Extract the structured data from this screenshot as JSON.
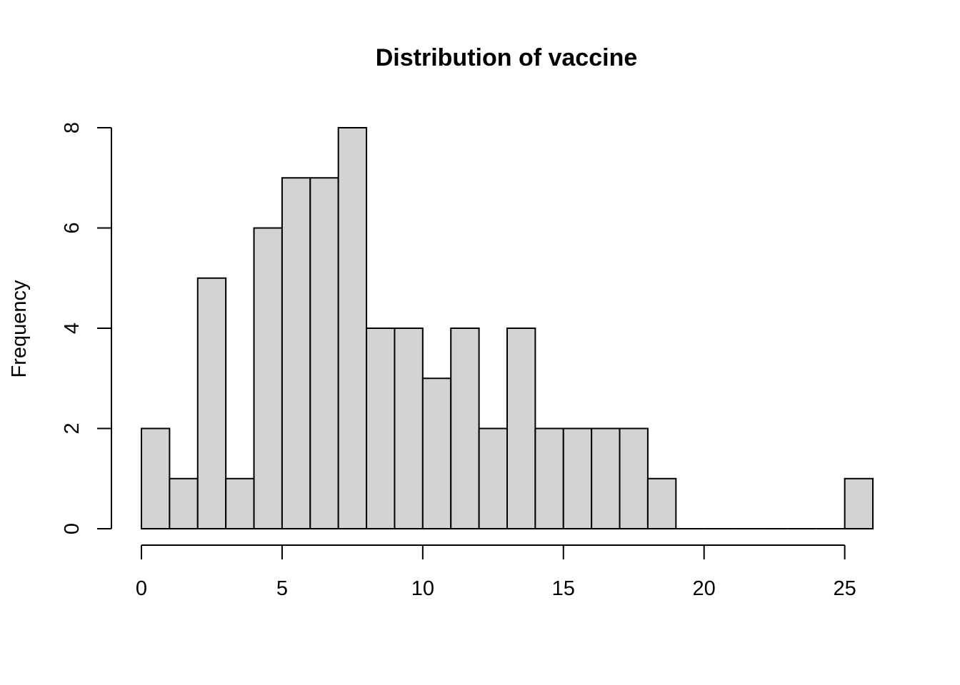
{
  "chart_data": {
    "type": "bar",
    "title": "Distribution of vaccine",
    "xlabel": "",
    "ylabel": "Frequency",
    "bins": [
      {
        "x0": 0,
        "x1": 1,
        "count": 2
      },
      {
        "x0": 1,
        "x1": 2,
        "count": 1
      },
      {
        "x0": 2,
        "x1": 3,
        "count": 5
      },
      {
        "x0": 3,
        "x1": 4,
        "count": 1
      },
      {
        "x0": 4,
        "x1": 5,
        "count": 6
      },
      {
        "x0": 5,
        "x1": 6,
        "count": 7
      },
      {
        "x0": 6,
        "x1": 7,
        "count": 7
      },
      {
        "x0": 7,
        "x1": 8,
        "count": 8
      },
      {
        "x0": 8,
        "x1": 9,
        "count": 4
      },
      {
        "x0": 9,
        "x1": 10,
        "count": 4
      },
      {
        "x0": 10,
        "x1": 11,
        "count": 3
      },
      {
        "x0": 11,
        "x1": 12,
        "count": 4
      },
      {
        "x0": 12,
        "x1": 13,
        "count": 2
      },
      {
        "x0": 13,
        "x1": 14,
        "count": 4
      },
      {
        "x0": 14,
        "x1": 15,
        "count": 2
      },
      {
        "x0": 15,
        "x1": 16,
        "count": 2
      },
      {
        "x0": 16,
        "x1": 17,
        "count": 2
      },
      {
        "x0": 17,
        "x1": 18,
        "count": 2
      },
      {
        "x0": 18,
        "x1": 19,
        "count": 1
      },
      {
        "x0": 19,
        "x1": 20,
        "count": 0
      },
      {
        "x0": 20,
        "x1": 21,
        "count": 0
      },
      {
        "x0": 21,
        "x1": 22,
        "count": 0
      },
      {
        "x0": 22,
        "x1": 23,
        "count": 0
      },
      {
        "x0": 23,
        "x1": 24,
        "count": 0
      },
      {
        "x0": 24,
        "x1": 25,
        "count": 0
      },
      {
        "x0": 25,
        "x1": 26,
        "count": 1
      }
    ],
    "xticks": [
      0,
      5,
      10,
      15,
      20,
      25
    ],
    "yticks": [
      0,
      2,
      4,
      6,
      8
    ],
    "xlim": [
      0,
      26
    ],
    "ylim": [
      0,
      8
    ],
    "grid": false,
    "colors": {
      "bar_fill": "#d3d3d3",
      "bar_stroke": "#000000"
    }
  }
}
